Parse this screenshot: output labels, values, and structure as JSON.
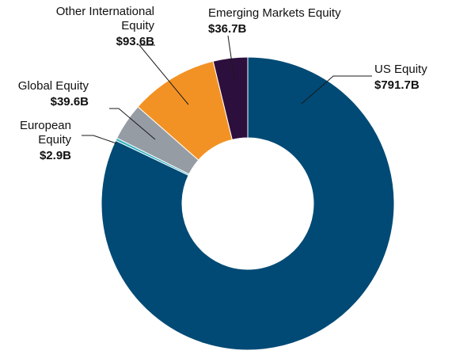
{
  "chart_data": {
    "type": "pie",
    "donut": true,
    "start_direction": "clockwise from top",
    "slices": [
      {
        "name": "US Equity",
        "value": 791.7,
        "label": "$791.7B",
        "color": "#004a75"
      },
      {
        "name": "European Equity",
        "value": 2.9,
        "label": "$2.9B",
        "color": "#35b5c4"
      },
      {
        "name": "Global Equity",
        "value": 39.6,
        "label": "$39.6B",
        "color": "#969ca4"
      },
      {
        "name": "Other International Equity",
        "value": 93.6,
        "label": "$93.6B",
        "color": "#f39224"
      },
      {
        "name": "Emerging Markets Equity",
        "value": 36.7,
        "label": "$36.7B",
        "color": "#2d0f3e"
      }
    ],
    "legend": "none (direct labels with leader lines)"
  },
  "labels": {
    "us": {
      "name": "US Equity",
      "value": "$791.7B"
    },
    "european": {
      "line1": "European",
      "line2": "Equity",
      "value": "$2.9B"
    },
    "global": {
      "name": "Global Equity",
      "value": "$39.6B"
    },
    "other_intl": {
      "line1": "Other International",
      "line2": "Equity",
      "value": "$93.6B"
    },
    "emerging": {
      "name": "Emerging Markets Equity",
      "value": "$36.7B"
    }
  }
}
